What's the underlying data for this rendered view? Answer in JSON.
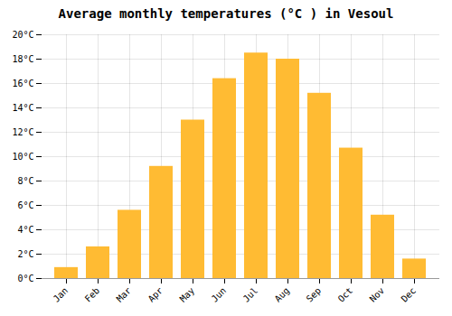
{
  "chart_data": {
    "type": "bar",
    "title": "Average monthly temperatures (°C ) in Vesoul",
    "categories": [
      "Jan",
      "Feb",
      "Mar",
      "Apr",
      "May",
      "Jun",
      "Jul",
      "Aug",
      "Sep",
      "Oct",
      "Nov",
      "Dec"
    ],
    "values": [
      0.9,
      2.6,
      5.6,
      9.2,
      13.0,
      16.4,
      18.5,
      18.0,
      15.2,
      10.7,
      5.2,
      1.6
    ],
    "color": "#FFBB33",
    "ylim": [
      0,
      20
    ],
    "yticks": [
      {
        "value": 0,
        "label": "0°C"
      },
      {
        "value": 2,
        "label": "2°C"
      },
      {
        "value": 4,
        "label": "4°C"
      },
      {
        "value": 6,
        "label": "6°C"
      },
      {
        "value": 8,
        "label": "8°C"
      },
      {
        "value": 10,
        "label": "10°C"
      },
      {
        "value": 12,
        "label": "12°C"
      },
      {
        "value": 14,
        "label": "14°C"
      },
      {
        "value": 16,
        "label": "16°C"
      },
      {
        "value": 18,
        "label": "18°C"
      },
      {
        "value": 20,
        "label": "20°C"
      }
    ],
    "grid": true
  }
}
